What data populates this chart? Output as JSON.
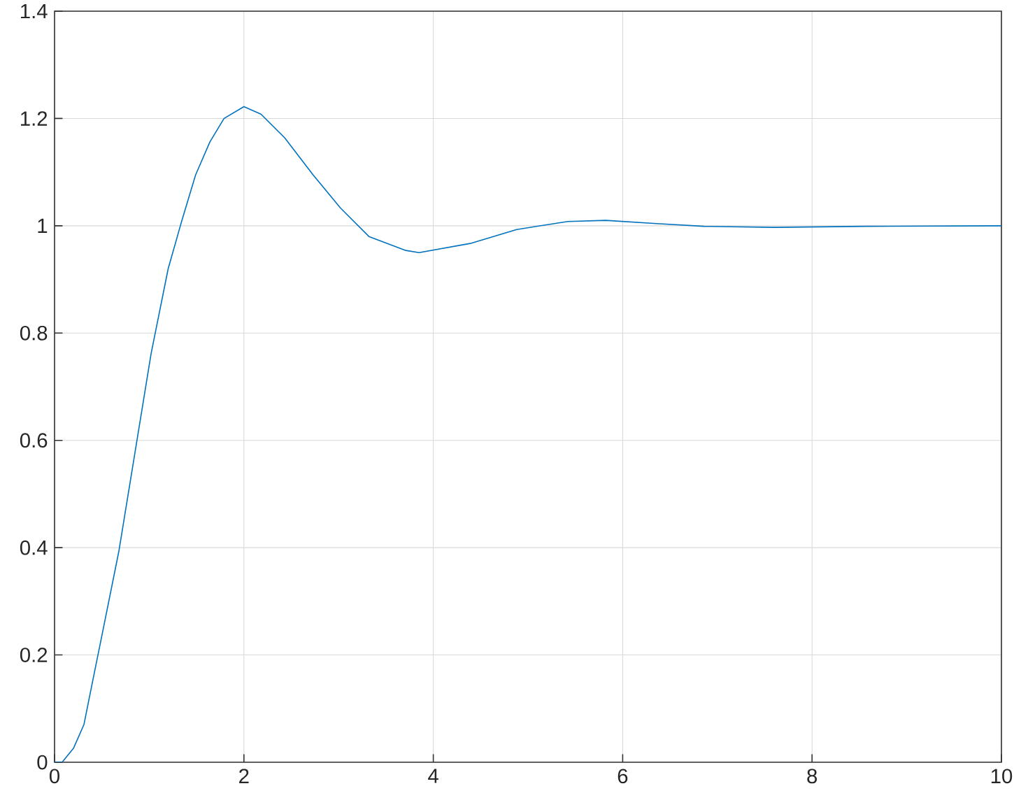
{
  "chart_data": {
    "type": "line",
    "color": "#0072bd",
    "x": [
      0,
      0.08,
      0.2,
      0.31,
      0.4,
      0.5,
      0.68,
      0.85,
      1.02,
      1.2,
      1.34,
      1.49,
      1.64,
      1.79,
      2.0,
      2.18,
      2.43,
      2.73,
      3.02,
      3.32,
      3.71,
      3.85,
      4.39,
      4.88,
      5.42,
      5.82,
      6.36,
      6.86,
      7.6,
      8.57,
      10
    ],
    "values": [
      0,
      0,
      0.026,
      0.07,
      0.149,
      0.236,
      0.394,
      0.578,
      0.762,
      0.92,
      1.007,
      1.095,
      1.156,
      1.2,
      1.222,
      1.208,
      1.164,
      1.095,
      1.033,
      0.98,
      0.954,
      0.95,
      0.967,
      0.993,
      1.008,
      1.01,
      1.004,
      0.999,
      0.997,
      0.999,
      1.0
    ],
    "xlim": [
      0,
      10
    ],
    "ylim": [
      0,
      1.4
    ],
    "xticks": [
      0,
      2,
      4,
      6,
      8,
      10
    ],
    "yticks": [
      0,
      0.2,
      0.4,
      0.6,
      0.8,
      1,
      1.2,
      1.4
    ],
    "grid": true
  }
}
